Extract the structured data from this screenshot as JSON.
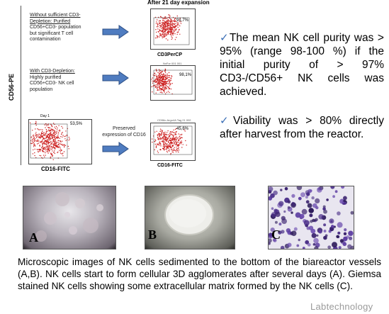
{
  "header": {
    "title": "After  21 day expansion"
  },
  "axes": {
    "y_label": "CD56-PE",
    "x_label": "CD16-FITC"
  },
  "rows": [
    {
      "label_lines": [
        "Without sufficient CD3-",
        "Depletion: Purified",
        "CD56+CD3- population",
        "but significant T cell",
        "contamination"
      ],
      "underline_count": 2,
      "percent": "91,7%",
      "x_label": "CD3PerCP",
      "tiny_header": ""
    },
    {
      "label_lines": [
        "With CD3-Depletion:",
        "Highly purified",
        "CD56+CD3- NK cell",
        "population"
      ],
      "underline_count": 1,
      "percent": "98,1%",
      "x_label": "",
      "tiny_header": "NxFor 001 001"
    },
    {
      "label_lines": [
        "Preserved",
        "expression of CD16"
      ],
      "underline_count": 0,
      "percent": "45,6%",
      "x_label": "CD16-FITC",
      "tiny_header": "CD56c-Argo4A Tag 21 002"
    }
  ],
  "day1_plot": {
    "label": "Day 1",
    "percent": "53,5%"
  },
  "bullets": [
    {
      "symbol": "✓",
      "text": "The mean NK cell purity was > 95% (range 98-100 %) if the initial purity of > 97% CD3-/CD56+ NK cells was achieved."
    },
    {
      "symbol": "✓",
      "text": "Viability was > 80% directly after harvest from the reactor."
    }
  ],
  "micrographs": [
    {
      "letter": "A"
    },
    {
      "letter": "B"
    },
    {
      "letter": "C"
    }
  ],
  "caption": "Microscopic images of NK cells sedimented to the bottom of the biareactor vessels (A,B). NK cells start to form cellular 3D agglomerates after several days (A). Giemsa stained NK cells showing some extracellular matrix formed by the NK cells (C).",
  "watermark": "Labtechnology",
  "colors": {
    "dots": "#cc1f1f",
    "arrow_fill": "#4f7cc0",
    "arrow_stroke": "#2d4f86",
    "check": "#3b6fb6"
  }
}
